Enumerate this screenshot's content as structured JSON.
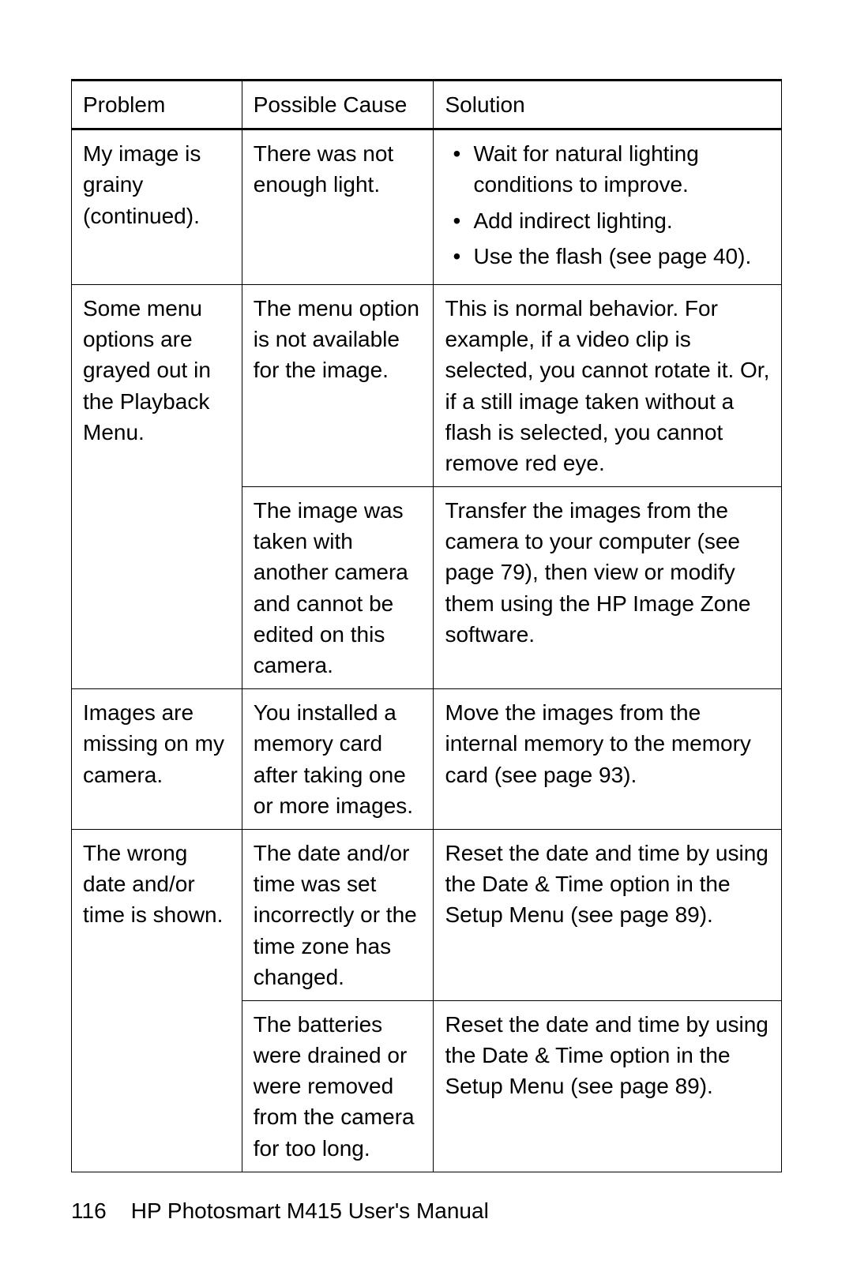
{
  "table": {
    "headers": [
      "Problem",
      "Possible Cause",
      "Solution"
    ],
    "rows": [
      {
        "problem_bold": "My image is grainy",
        "problem_rest": " (continued).",
        "cause": "There was not enough light.",
        "solution_type": "list",
        "solution_items": [
          "Wait for natural lighting conditions to improve.",
          "Add indirect lighting.",
          "Use the flash (see page 40)."
        ]
      },
      {
        "problem_bold": "Some menu options are grayed out in the Playback Menu.",
        "problem_rest": "",
        "cause": "The menu option is not available for the image.",
        "solution_type": "text",
        "solution_text": "This is normal behavior. For example, if a video clip is selected, you cannot rotate it. Or, if a still image taken without a flash is selected, you cannot remove red eye.",
        "rowspan": 2
      },
      {
        "cause": "The image was taken with another camera and cannot be edited on this camera.",
        "solution_type": "text",
        "solution_text": "Transfer the images from the camera to your computer (see page 79), then view or modify them using the HP Image Zone software."
      },
      {
        "problem_bold": "Images are missing on my camera.",
        "problem_rest": "",
        "cause": "You installed a memory card after taking one or more images.",
        "solution_type": "text",
        "solution_text": "Move the images from the internal memory to the memory card (see page 93)."
      },
      {
        "problem_bold": "The wrong date and/or time is shown.",
        "problem_rest": "",
        "cause": "The date and/or time was set incorrectly or the time zone has changed.",
        "solution_type": "rich1",
        "rowspan": 2
      },
      {
        "cause": "The batteries were drained or were removed from the camera for too long.",
        "solution_type": "rich1"
      }
    ],
    "rich_solution": {
      "pre": "Reset the date and time by using the ",
      "b1": "Date & Time",
      "mid": " option in the ",
      "b2": "Setup Menu",
      "post": " (see page 89)."
    }
  },
  "footer": {
    "page": "116",
    "title": "HP Photosmart M415 User's Manual"
  },
  "style": {
    "text_color": "#000000",
    "background_color": "#ffffff",
    "body_fontsize": 28,
    "header_border_width": 3,
    "cell_border_width": 1,
    "col_widths_pct": [
      24,
      27,
      49
    ]
  }
}
